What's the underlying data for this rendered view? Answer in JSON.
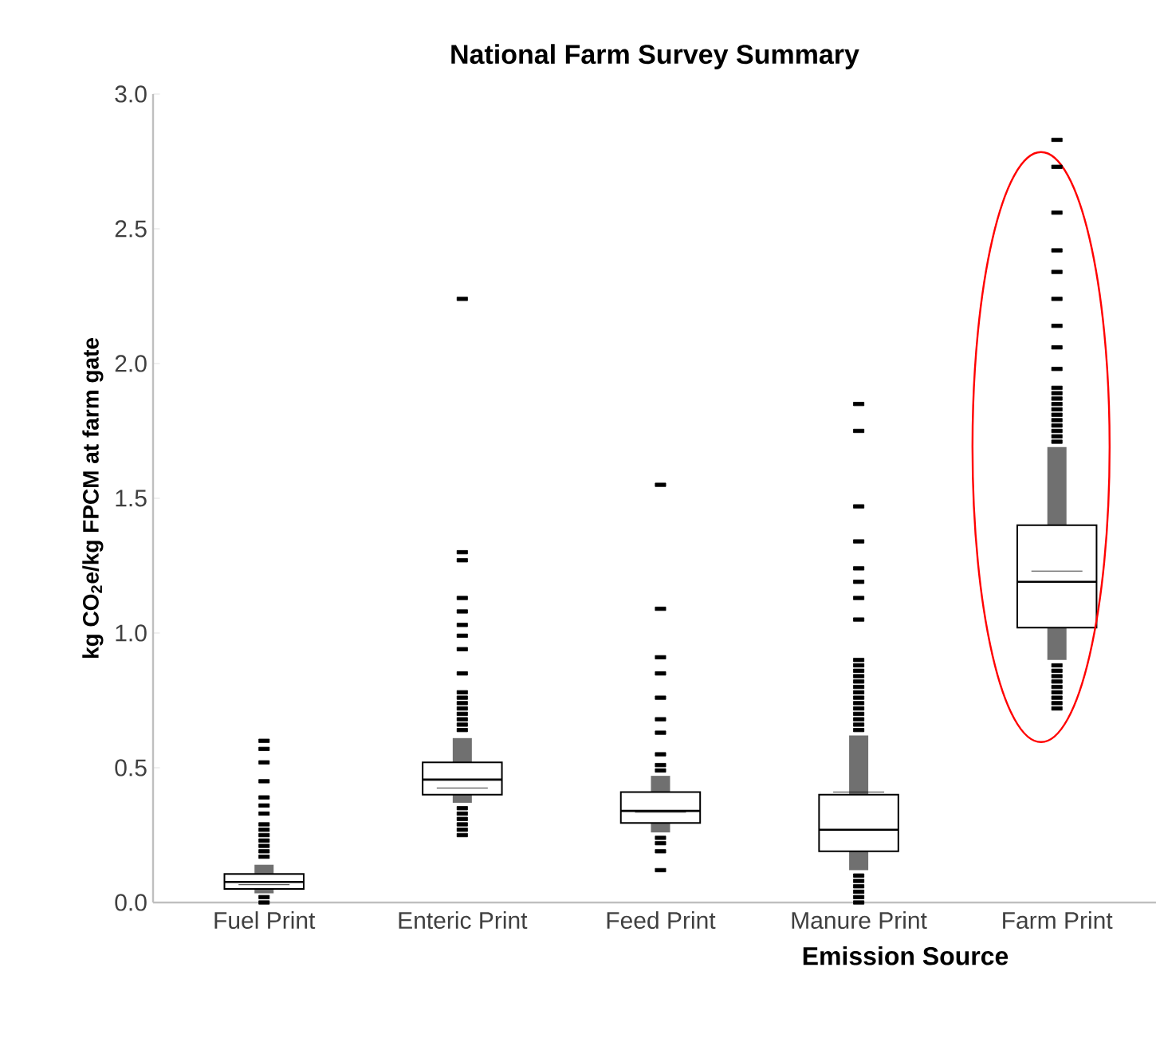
{
  "chart_data": {
    "type": "box",
    "title": "National Farm Survey Summary",
    "xlabel": "Emission Source",
    "ylabel": "kg CO$_{2}$e/kg FPCM at farm gate",
    "categories": [
      "Fuel Print",
      "Enteric Print",
      "Feed Print",
      "Manure Print",
      "Farm Print"
    ],
    "ylim": [
      0,
      3
    ],
    "yticks": [
      {
        "value": 0,
        "label": "0.0"
      },
      {
        "value": 0.5,
        "label": "0.5"
      },
      {
        "value": 1,
        "label": "1.0"
      },
      {
        "value": 1.5,
        "label": "1.5"
      },
      {
        "value": 2,
        "label": "2.0"
      },
      {
        "value": 2.5,
        "label": "2.5"
      },
      {
        "value": 3,
        "label": "3.0"
      }
    ],
    "series": [
      {
        "boxes": [
          {
            "low": 0.034,
            "q1": 0.05,
            "median": 0.076,
            "q3": 0.106,
            "high": 0.14,
            "mean": 0.066,
            "outliers": [
              0.17,
              0.19,
              0.21,
              0.23,
              0.25,
              0.27,
              0.29,
              0.33,
              0.36,
              0.39,
              0.45,
              0.52,
              0.57,
              0.6,
              0.02,
              0.0
            ]
          },
          {
            "low": 0.37,
            "q1": 0.4,
            "median": 0.456,
            "q3": 0.52,
            "high": 0.61,
            "mean": 0.425,
            "outliers": [
              0.64,
              0.66,
              0.68,
              0.7,
              0.72,
              0.74,
              0.76,
              0.78,
              0.85,
              0.94,
              0.99,
              1.03,
              1.08,
              1.13,
              1.27,
              1.3,
              2.24,
              0.35,
              0.33,
              0.31,
              0.29,
              0.27,
              0.25
            ]
          },
          {
            "low": 0.26,
            "q1": 0.295,
            "median": 0.34,
            "q3": 0.41,
            "high": 0.47,
            "mean": 0.335,
            "outliers": [
              0.49,
              0.51,
              0.55,
              0.63,
              0.68,
              0.76,
              0.85,
              0.91,
              1.09,
              1.55,
              0.24,
              0.22,
              0.19,
              0.12
            ]
          },
          {
            "low": 0.12,
            "q1": 0.19,
            "median": 0.27,
            "q3": 0.4,
            "high": 0.62,
            "mean": 0.41,
            "outliers": [
              0.64,
              0.66,
              0.68,
              0.7,
              0.72,
              0.74,
              0.76,
              0.78,
              0.8,
              0.82,
              0.84,
              0.86,
              0.88,
              0.9,
              1.05,
              1.13,
              1.19,
              1.24,
              1.34,
              1.47,
              1.75,
              1.85,
              0.1,
              0.08,
              0.06,
              0.04,
              0.02,
              0.0
            ]
          },
          {
            "low": 0.9,
            "q1": 1.02,
            "median": 1.19,
            "q3": 1.4,
            "high": 1.69,
            "mean": 1.23,
            "outliers": [
              1.71,
              1.73,
              1.75,
              1.77,
              1.79,
              1.81,
              1.83,
              1.85,
              1.87,
              1.89,
              1.91,
              1.98,
              2.06,
              2.14,
              2.24,
              2.34,
              2.42,
              2.56,
              2.73,
              2.83,
              0.88,
              0.86,
              0.84,
              0.82,
              0.8,
              0.78,
              0.76,
              0.74,
              0.72
            ]
          }
        ]
      }
    ]
  }
}
